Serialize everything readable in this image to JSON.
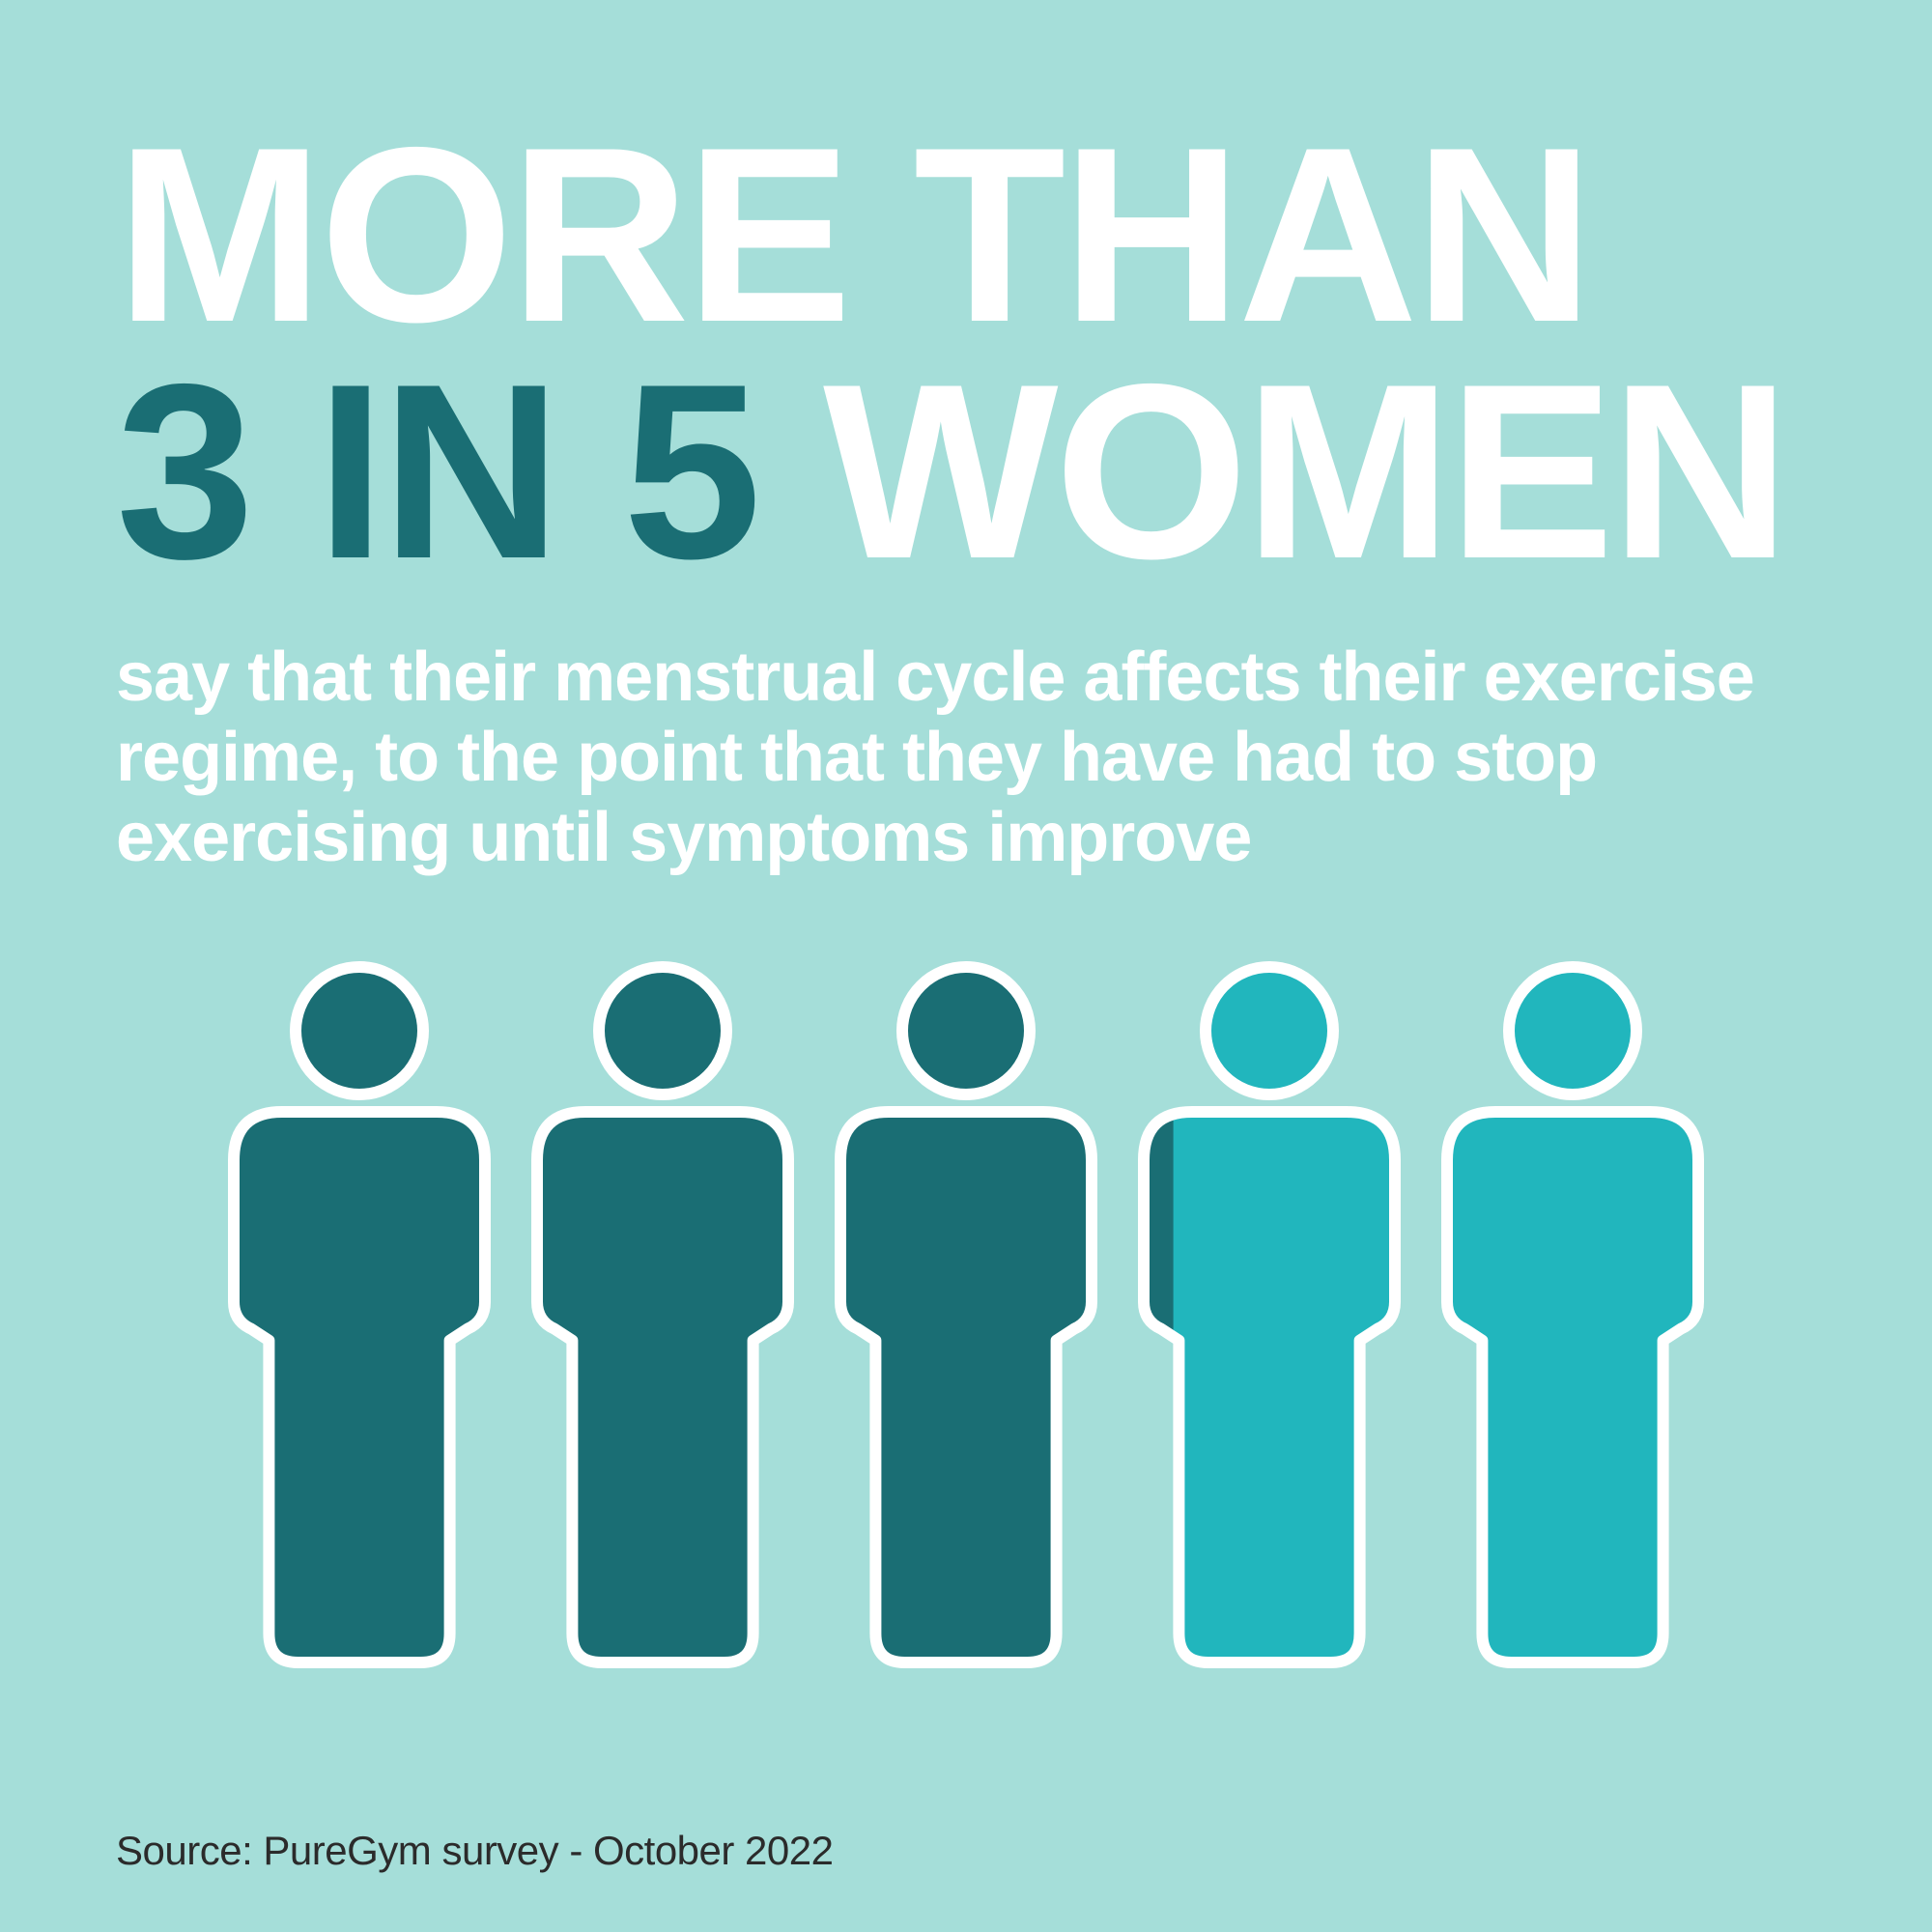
{
  "colors": {
    "background": "#a5ded9",
    "text_white": "#ffffff",
    "text_dark_teal": "#1a6e74",
    "text_source": "#2b2b2b",
    "fill_dark": "#1a6e74",
    "fill_light": "#21b6bd",
    "stroke": "#ffffff"
  },
  "headline": {
    "line1": "MORE THAN",
    "line2_accent": "3 IN 5",
    "line2_rest": " WOMEN"
  },
  "subtext": "say that their menstrual cycle affects their exercise regime, to the point that they have had to stop exercising until symptoms improve",
  "source": "Source: PureGym survey - October 2022",
  "figures": {
    "count": 5,
    "fill_ratio": 0.63,
    "stroke_width": 12,
    "head_radius": 66,
    "body_width": 260,
    "total_height": 720
  }
}
